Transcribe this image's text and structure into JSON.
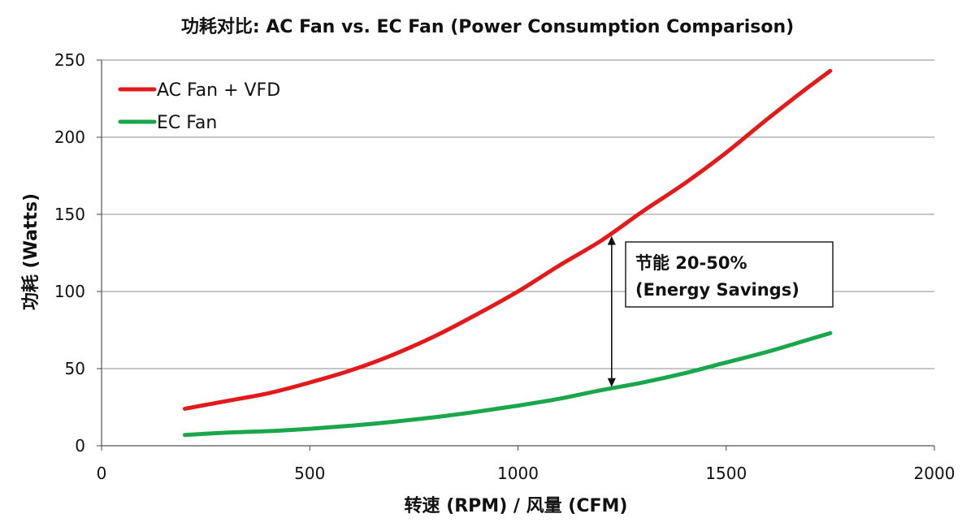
{
  "chart_data": {
    "type": "line",
    "title": "功耗对比: AC Fan vs. EC Fan (Power Consumption Comparison)",
    "xlabel": "转速 (RPM)  / 风量 (CFM)",
    "ylabel": "功耗 (Watts)",
    "xlim": [
      0,
      2000
    ],
    "ylim": [
      0,
      250
    ],
    "xticks": [
      "0",
      "500",
      "1000",
      "1500",
      "2000"
    ],
    "yticks": [
      "0",
      "50",
      "100",
      "150",
      "200",
      "250"
    ],
    "grid": "horizontal",
    "legend_position": "top-left",
    "series": [
      {
        "name": "AC Fan + VFD",
        "color": "#e31a1c",
        "x": [
          200,
          300,
          400,
          500,
          600,
          700,
          800,
          900,
          1000,
          1100,
          1200,
          1300,
          1400,
          1500,
          1600,
          1700,
          1750
        ],
        "y": [
          24,
          29,
          34,
          41,
          49,
          59,
          71,
          85,
          100,
          117,
          133,
          152,
          170,
          190,
          212,
          233,
          243
        ]
      },
      {
        "name": "EC Fan",
        "color": "#1aa64b",
        "x": [
          200,
          300,
          400,
          500,
          600,
          700,
          800,
          900,
          1000,
          1100,
          1200,
          1300,
          1400,
          1500,
          1600,
          1700,
          1750
        ],
        "y": [
          7,
          8.5,
          9.5,
          11,
          13,
          15.5,
          18.5,
          22,
          26,
          30.5,
          36,
          41,
          47,
          54,
          61,
          69,
          73
        ]
      }
    ],
    "annotation": {
      "x": 1225,
      "y_top": 136,
      "y_bottom": 38,
      "line1": "节能 20-50%",
      "line2": "(Energy Savings)"
    }
  }
}
